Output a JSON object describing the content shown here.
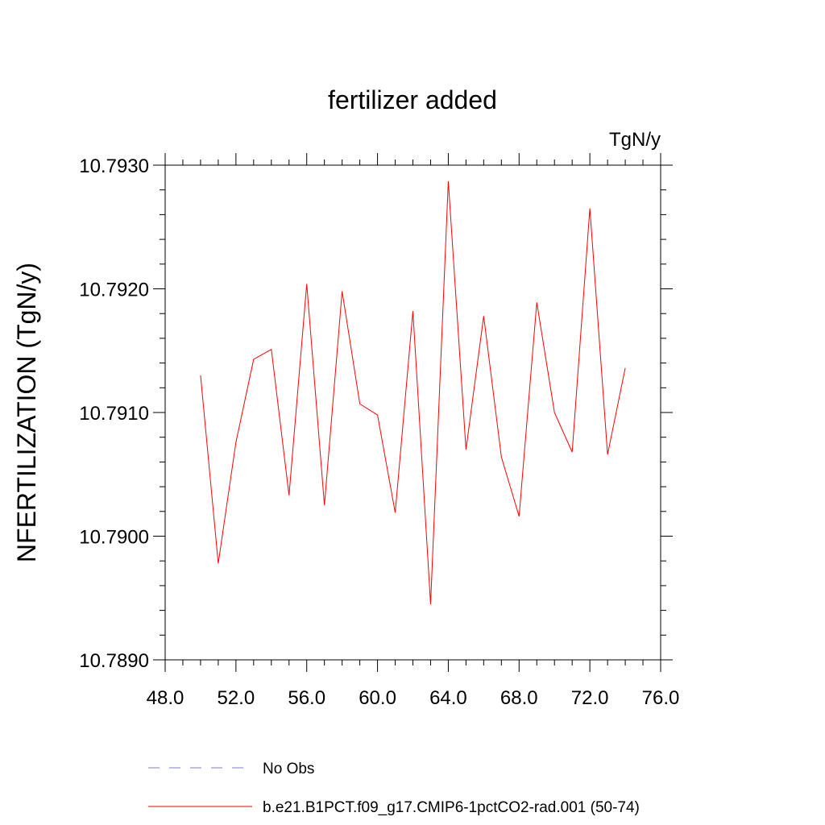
{
  "chart_data": {
    "type": "line",
    "title": "fertilizer added",
    "units_label": "TgN/y",
    "ylabel": "NFERTILIZATION  (TgN/y)",
    "xlabel": "",
    "xlim": [
      48.0,
      76.0
    ],
    "ylim": [
      10.789,
      10.793
    ],
    "x_ticks": [
      "48.0",
      "52.0",
      "56.0",
      "60.0",
      "64.0",
      "68.0",
      "72.0",
      "76.0"
    ],
    "y_ticks": [
      "10.7890",
      "10.7900",
      "10.7910",
      "10.7920",
      "10.7930"
    ],
    "grid": false,
    "legend_position": "bottom",
    "series": [
      {
        "name": "No Obs",
        "color": "#7b7bd6",
        "dash": "dashed",
        "x": [],
        "y": []
      },
      {
        "name": "b.e21.B1PCT.f09_g17.CMIP6-1pctCO2-rad.001 (50-74)",
        "color": "#ff0000",
        "dash": "solid",
        "x": [
          50,
          51,
          52,
          53,
          54,
          55,
          56,
          57,
          58,
          59,
          60,
          61,
          62,
          63,
          64,
          65,
          66,
          67,
          68,
          69,
          70,
          71,
          72,
          73,
          74
        ],
        "y": [
          10.7913,
          10.78978,
          10.79076,
          10.79143,
          10.79151,
          10.79033,
          10.79204,
          10.79025,
          10.79198,
          10.79107,
          10.79098,
          10.79019,
          10.79182,
          10.78945,
          10.79287,
          10.7907,
          10.79178,
          10.79064,
          10.79016,
          10.79189,
          10.791,
          10.79068,
          10.79265,
          10.79066,
          10.79136
        ]
      }
    ]
  }
}
